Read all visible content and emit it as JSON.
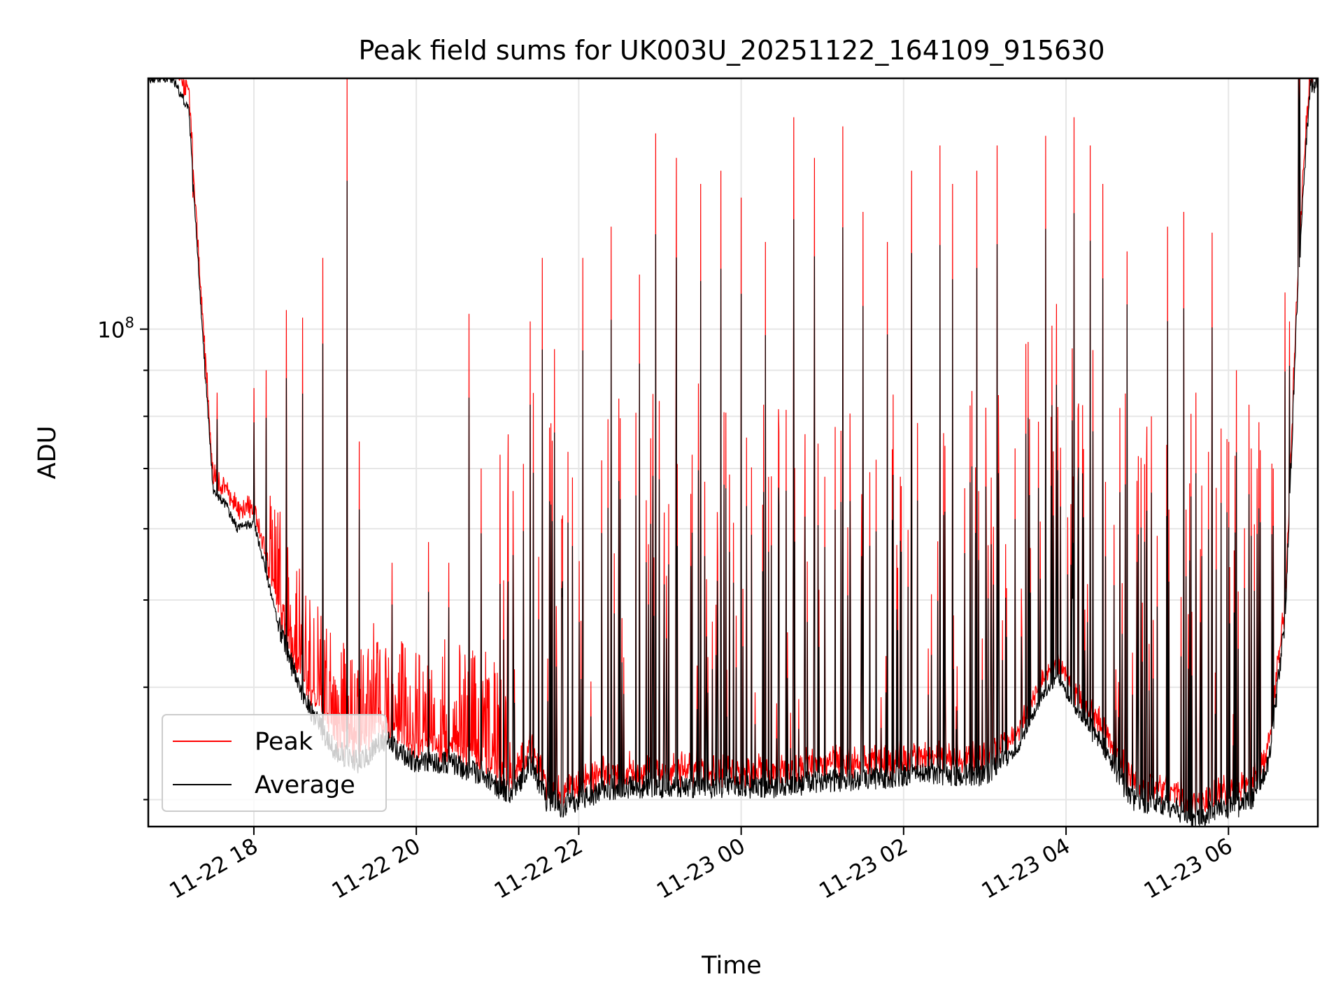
{
  "chart_data": {
    "type": "line",
    "title": "Peak field sums for UK003U_20251122_164109_915630",
    "xlabel": "Time",
    "ylabel": "ADU",
    "yscale": "log",
    "ylim": [
      28000000,
      190000000
    ],
    "y_major_tick_values": [
      100000000
    ],
    "y_major_tick_labels": [
      {
        "base": "10",
        "exp": "8"
      }
    ],
    "y_minor_tick_values": [
      30000000,
      40000000,
      50000000,
      60000000,
      70000000,
      80000000,
      90000000,
      200000000
    ],
    "xlim_hours": [
      16.7,
      31.1
    ],
    "x_tick_hours": [
      18,
      20,
      22,
      24,
      26,
      28,
      30
    ],
    "x_tick_labels": [
      "11-22 18",
      "11-22 20",
      "11-22 22",
      "11-23 00",
      "11-23 02",
      "11-23 04",
      "11-23 06"
    ],
    "grid": true,
    "legend": {
      "location": "lower-left",
      "entries": [
        "Peak",
        "Average"
      ]
    },
    "series": [
      {
        "name": "Peak",
        "color": "#ff0000"
      },
      {
        "name": "Average",
        "color": "#000000"
      }
    ],
    "baseline_hours": [
      16.7,
      17.0,
      17.2,
      17.35,
      17.5,
      17.65,
      17.8,
      18.0,
      18.3,
      18.6,
      19.0,
      19.3,
      19.6,
      20.0,
      20.4,
      20.8,
      21.0,
      21.2,
      21.4,
      21.6,
      21.8,
      22.0,
      22.5,
      23.0,
      23.5,
      24.0,
      24.5,
      25.0,
      25.5,
      26.0,
      26.5,
      27.0,
      27.4,
      27.7,
      27.9,
      28.1,
      28.3,
      28.5,
      28.8,
      29.0,
      29.3,
      29.6,
      29.9,
      30.1,
      30.3,
      30.5,
      30.7,
      30.85,
      31.0,
      31.1
    ],
    "baseline_average_adu": [
      190000000,
      190000000,
      175000000,
      105000000,
      66000000,
      64000000,
      60000000,
      61000000,
      47000000,
      39000000,
      34000000,
      33000000,
      35000000,
      33000000,
      33000000,
      32000000,
      31000000,
      30500000,
      33000000,
      30000000,
      29500000,
      30000000,
      31000000,
      31000000,
      31000000,
      31000000,
      31000000,
      31500000,
      31500000,
      32000000,
      32000000,
      32000000,
      34000000,
      39000000,
      41000000,
      38000000,
      36000000,
      34000000,
      30000000,
      29800000,
      29500000,
      28500000,
      29500000,
      29500000,
      30000000,
      33000000,
      48000000,
      110000000,
      185000000,
      190000000
    ],
    "peak_spikes": [
      {
        "hour": 17.25,
        "adu": 140000000
      },
      {
        "hour": 17.4,
        "adu": 88000000
      },
      {
        "hour": 17.55,
        "adu": 85000000
      },
      {
        "hour": 18.0,
        "adu": 86000000
      },
      {
        "hour": 18.15,
        "adu": 90000000
      },
      {
        "hour": 18.4,
        "adu": 105000000
      },
      {
        "hour": 18.6,
        "adu": 103000000
      },
      {
        "hour": 18.85,
        "adu": 120000000
      },
      {
        "hour": 19.15,
        "adu": 190000000
      },
      {
        "hour": 19.3,
        "adu": 75000000
      },
      {
        "hour": 19.7,
        "adu": 55000000
      },
      {
        "hour": 20.15,
        "adu": 58000000
      },
      {
        "hour": 20.4,
        "adu": 55000000
      },
      {
        "hour": 20.65,
        "adu": 104000000
      },
      {
        "hour": 20.8,
        "adu": 70000000
      },
      {
        "hour": 21.2,
        "adu": 48000000
      },
      {
        "hour": 21.4,
        "adu": 102000000
      },
      {
        "hour": 21.55,
        "adu": 120000000
      },
      {
        "hour": 21.7,
        "adu": 95000000
      },
      {
        "hour": 22.05,
        "adu": 120000000
      },
      {
        "hour": 22.4,
        "adu": 130000000
      },
      {
        "hour": 22.75,
        "adu": 115000000
      },
      {
        "hour": 22.95,
        "adu": 165000000
      },
      {
        "hour": 23.2,
        "adu": 155000000
      },
      {
        "hour": 23.5,
        "adu": 145000000
      },
      {
        "hour": 23.75,
        "adu": 150000000
      },
      {
        "hour": 24.0,
        "adu": 140000000
      },
      {
        "hour": 24.3,
        "adu": 125000000
      },
      {
        "hour": 24.65,
        "adu": 172000000
      },
      {
        "hour": 24.9,
        "adu": 155000000
      },
      {
        "hour": 25.25,
        "adu": 168000000
      },
      {
        "hour": 25.5,
        "adu": 135000000
      },
      {
        "hour": 25.8,
        "adu": 125000000
      },
      {
        "hour": 26.1,
        "adu": 150000000
      },
      {
        "hour": 26.45,
        "adu": 160000000
      },
      {
        "hour": 26.6,
        "adu": 145000000
      },
      {
        "hour": 26.9,
        "adu": 150000000
      },
      {
        "hour": 27.15,
        "adu": 160000000
      },
      {
        "hour": 27.75,
        "adu": 164000000
      },
      {
        "hour": 28.1,
        "adu": 172000000
      },
      {
        "hour": 28.3,
        "adu": 160000000
      },
      {
        "hour": 28.45,
        "adu": 145000000
      },
      {
        "hour": 28.75,
        "adu": 122000000
      },
      {
        "hour": 29.05,
        "adu": 80000000
      },
      {
        "hour": 29.25,
        "adu": 130000000
      },
      {
        "hour": 29.45,
        "adu": 135000000
      },
      {
        "hour": 29.6,
        "adu": 85000000
      },
      {
        "hour": 29.8,
        "adu": 128000000
      },
      {
        "hour": 30.1,
        "adu": 90000000
      },
      {
        "hour": 30.35,
        "adu": 70000000
      },
      {
        "hour": 30.55,
        "adu": 70000000
      },
      {
        "hour": 30.75,
        "adu": 102000000
      }
    ]
  }
}
